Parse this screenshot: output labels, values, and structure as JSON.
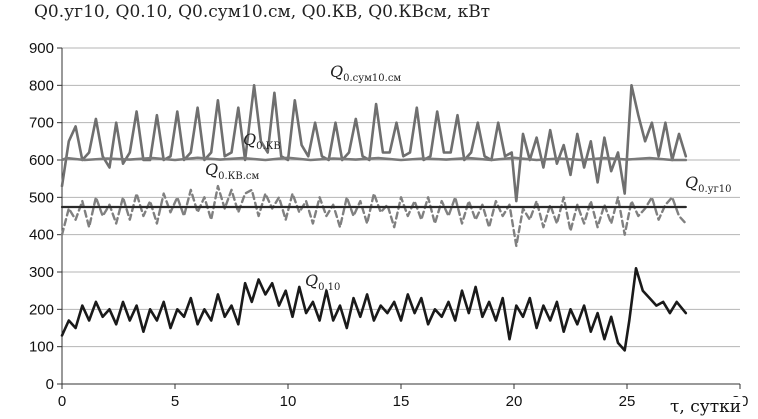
{
  "chart_data": {
    "type": "line",
    "title": "Q0.уг10, Q0.10, Q0.сум10.см, Q0.КВ, Q0.КВсм, кВт",
    "xlabel": "τ, сутки",
    "ylabel": "",
    "xlim": [
      0,
      30
    ],
    "ylim": [
      0,
      900
    ],
    "xticks": [
      "0",
      "5",
      "10",
      "15",
      "20",
      "25",
      "30"
    ],
    "yticks": [
      "0",
      "100",
      "200",
      "300",
      "400",
      "500",
      "600",
      "700",
      "800",
      "900"
    ],
    "grid": "horizontal",
    "legend": "none",
    "annotations": [
      {
        "text": "Q0.сум10.см",
        "base": "Q",
        "sub": "0.сум10.см"
      },
      {
        "text": "Q0.КВ",
        "base": "Q",
        "sub": "0.КВ"
      },
      {
        "text": "Q0.КВ.см",
        "base": "Q",
        "sub": "0.КВ.см"
      },
      {
        "text": "Q0.уг10",
        "base": "Q",
        "sub": "0.уг10"
      },
      {
        "text": "Q0.10",
        "base": "Q",
        "sub": "0.10"
      }
    ],
    "series": [
      {
        "name": "Q0.сум10.см",
        "color": "#6f6f6f",
        "style": "solid",
        "x": [
          0,
          0.3,
          0.6,
          0.9,
          1.2,
          1.5,
          1.8,
          2.1,
          2.4,
          2.7,
          3.0,
          3.3,
          3.6,
          3.9,
          4.2,
          4.5,
          4.8,
          5.1,
          5.4,
          5.7,
          6.0,
          6.3,
          6.6,
          6.9,
          7.2,
          7.5,
          7.8,
          8.1,
          8.5,
          8.8,
          9.1,
          9.4,
          9.7,
          10.0,
          10.3,
          10.6,
          10.9,
          11.2,
          11.5,
          11.8,
          12.1,
          12.4,
          12.7,
          13.0,
          13.3,
          13.6,
          13.9,
          14.2,
          14.5,
          14.8,
          15.1,
          15.4,
          15.7,
          16.0,
          16.3,
          16.6,
          16.9,
          17.2,
          17.5,
          17.8,
          18.1,
          18.4,
          18.7,
          19.0,
          19.3,
          19.6,
          19.9,
          20.1,
          20.4,
          20.7,
          21.0,
          21.3,
          21.6,
          21.9,
          22.2,
          22.5,
          22.8,
          23.1,
          23.4,
          23.7,
          24.0,
          24.3,
          24.6,
          24.9,
          25.2,
          25.5,
          25.8,
          26.1,
          26.4,
          26.7,
          27.0,
          27.3,
          27.6
        ],
        "y": [
          530,
          650,
          690,
          600,
          620,
          710,
          610,
          580,
          700,
          590,
          620,
          730,
          600,
          600,
          720,
          600,
          610,
          730,
          600,
          620,
          740,
          600,
          620,
          760,
          610,
          620,
          740,
          600,
          800,
          650,
          620,
          780,
          610,
          600,
          760,
          640,
          610,
          700,
          610,
          600,
          700,
          600,
          620,
          710,
          610,
          600,
          750,
          620,
          620,
          700,
          610,
          620,
          740,
          600,
          610,
          730,
          620,
          620,
          720,
          600,
          620,
          700,
          610,
          600,
          700,
          610,
          620,
          490,
          670,
          600,
          660,
          580,
          680,
          590,
          640,
          560,
          670,
          580,
          650,
          540,
          660,
          570,
          620,
          510,
          800,
          720,
          650,
          700,
          610,
          700,
          600,
          670,
          610
        ]
      },
      {
        "name": "Q0.КВ",
        "color": "#7a7a7a",
        "style": "solid",
        "x": [
          0,
          0.2,
          1,
          2,
          3,
          4,
          5,
          6,
          7,
          8,
          9,
          10,
          11,
          12,
          13,
          14,
          15,
          16,
          17,
          18,
          19,
          20,
          21,
          22,
          23,
          24,
          25,
          26,
          27,
          27.6
        ],
        "y": [
          600,
          605,
          600,
          604,
          601,
          605,
          600,
          606,
          601,
          605,
          600,
          606,
          600,
          604,
          601,
          605,
          600,
          604,
          601,
          605,
          600,
          606,
          600,
          604,
          600,
          605,
          601,
          605,
          600,
          600
        ]
      },
      {
        "name": "Q0.КВ.см",
        "color": "#808080",
        "style": "dashed",
        "x": [
          0,
          0.3,
          0.6,
          0.9,
          1.2,
          1.5,
          1.8,
          2.1,
          2.4,
          2.7,
          3.0,
          3.3,
          3.6,
          3.9,
          4.2,
          4.5,
          4.8,
          5.1,
          5.4,
          5.7,
          6.0,
          6.3,
          6.6,
          6.9,
          7.2,
          7.5,
          7.8,
          8.1,
          8.4,
          8.7,
          9.0,
          9.3,
          9.6,
          9.9,
          10.2,
          10.5,
          10.8,
          11.1,
          11.4,
          11.7,
          12.0,
          12.3,
          12.6,
          12.9,
          13.2,
          13.5,
          13.8,
          14.1,
          14.4,
          14.7,
          15.0,
          15.3,
          15.6,
          15.9,
          16.2,
          16.5,
          16.8,
          17.1,
          17.4,
          17.7,
          18.0,
          18.3,
          18.6,
          18.9,
          19.2,
          19.5,
          19.8,
          20.1,
          20.4,
          20.7,
          21.0,
          21.3,
          21.6,
          21.9,
          22.2,
          22.5,
          22.8,
          23.1,
          23.4,
          23.7,
          24.0,
          24.3,
          24.6,
          24.9,
          25.2,
          25.5,
          25.8,
          26.1,
          26.4,
          26.7,
          27.0,
          27.3,
          27.6
        ],
        "y": [
          400,
          470,
          440,
          490,
          420,
          500,
          450,
          480,
          430,
          500,
          440,
          510,
          450,
          490,
          430,
          510,
          460,
          500,
          450,
          520,
          460,
          500,
          440,
          530,
          470,
          520,
          460,
          510,
          520,
          450,
          510,
          470,
          500,
          440,
          510,
          460,
          490,
          430,
          500,
          450,
          480,
          420,
          500,
          450,
          490,
          430,
          510,
          460,
          480,
          420,
          500,
          450,
          490,
          440,
          500,
          430,
          490,
          450,
          500,
          430,
          490,
          440,
          480,
          420,
          490,
          450,
          480,
          370,
          470,
          440,
          490,
          420,
          480,
          430,
          500,
          410,
          480,
          430,
          490,
          420,
          480,
          430,
          500,
          400,
          490,
          450,
          470,
          500,
          440,
          480,
          500,
          450,
          430
        ]
      },
      {
        "name": "Q0.уг10",
        "color": "#2a2a2a",
        "style": "solid",
        "x": [
          0,
          27.6
        ],
        "y": [
          474,
          474
        ]
      },
      {
        "name": "Q0.10",
        "color": "#1a1a1a",
        "style": "solid",
        "x": [
          0,
          0.3,
          0.6,
          0.9,
          1.2,
          1.5,
          1.8,
          2.1,
          2.4,
          2.7,
          3.0,
          3.3,
          3.6,
          3.9,
          4.2,
          4.5,
          4.8,
          5.1,
          5.4,
          5.7,
          6.0,
          6.3,
          6.6,
          6.9,
          7.2,
          7.5,
          7.8,
          8.1,
          8.4,
          8.7,
          9.0,
          9.3,
          9.6,
          9.9,
          10.2,
          10.5,
          10.8,
          11.1,
          11.4,
          11.7,
          12.0,
          12.3,
          12.6,
          12.9,
          13.2,
          13.5,
          13.8,
          14.1,
          14.4,
          14.7,
          15.0,
          15.3,
          15.6,
          15.9,
          16.2,
          16.5,
          16.8,
          17.1,
          17.4,
          17.7,
          18.0,
          18.3,
          18.6,
          18.9,
          19.2,
          19.5,
          19.8,
          20.1,
          20.4,
          20.7,
          21.0,
          21.3,
          21.6,
          21.9,
          22.2,
          22.5,
          22.8,
          23.1,
          23.4,
          23.7,
          24.0,
          24.3,
          24.6,
          24.9,
          25.1,
          25.4,
          25.7,
          26.0,
          26.3,
          26.6,
          26.9,
          27.2,
          27.6
        ],
        "y": [
          130,
          170,
          150,
          210,
          170,
          220,
          180,
          200,
          160,
          220,
          170,
          210,
          140,
          200,
          170,
          220,
          150,
          200,
          180,
          230,
          160,
          200,
          170,
          240,
          180,
          210,
          160,
          270,
          220,
          280,
          240,
          270,
          210,
          250,
          180,
          260,
          190,
          220,
          170,
          250,
          170,
          210,
          150,
          230,
          180,
          240,
          170,
          210,
          190,
          220,
          170,
          240,
          190,
          230,
          160,
          200,
          180,
          220,
          170,
          250,
          190,
          260,
          180,
          220,
          170,
          230,
          120,
          210,
          180,
          230,
          150,
          210,
          170,
          220,
          140,
          200,
          160,
          210,
          140,
          190,
          120,
          180,
          110,
          90,
          170,
          310,
          250,
          230,
          210,
          220,
          190,
          220,
          190
        ]
      }
    ]
  }
}
